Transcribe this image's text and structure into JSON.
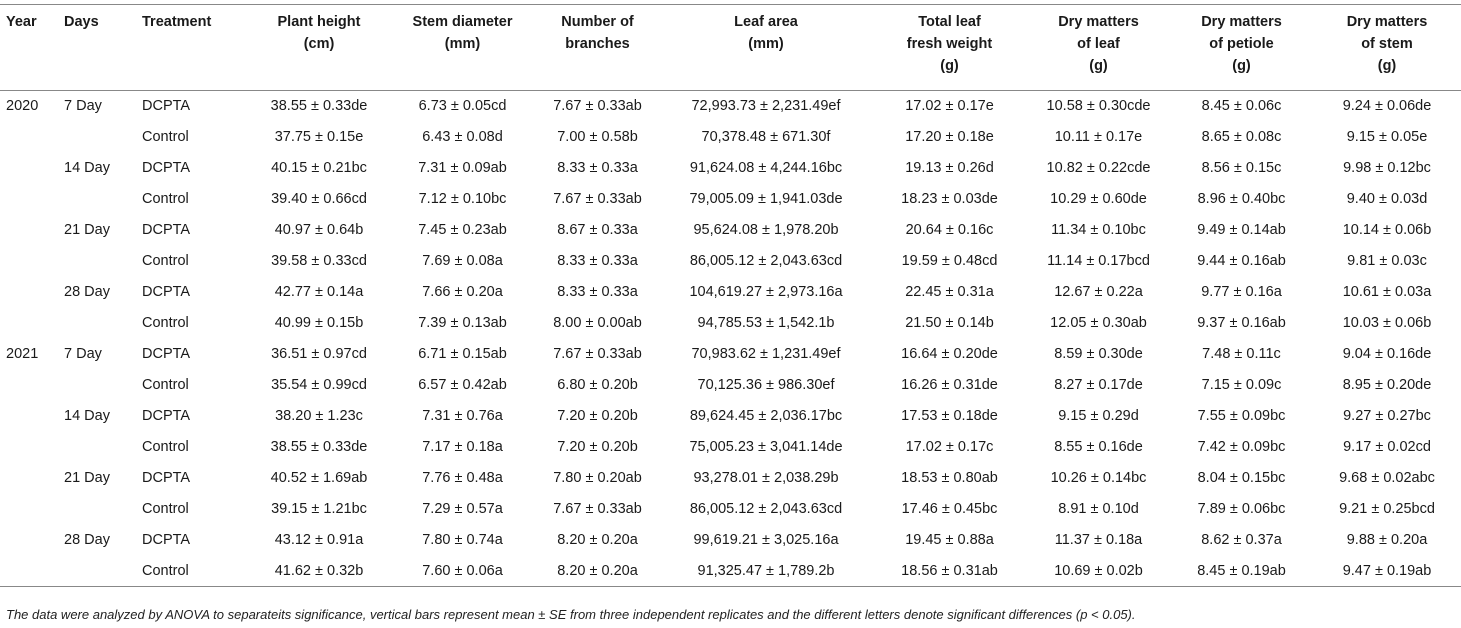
{
  "table": {
    "headers": [
      "Year",
      "Days",
      "Treatment",
      "Plant height\n(cm)",
      "Stem diameter\n(mm)",
      "Number of\nbranches",
      "Leaf area\n(mm)",
      "Total leaf\nfresh weight\n(g)",
      "Dry matters\nof leaf\n(g)",
      "Dry matters\nof petiole\n(g)",
      "Dry matters\nof stem\n(g)"
    ],
    "rows": [
      [
        "2020",
        "7 Day",
        "DCPTA",
        "38.55 ± 0.33de",
        "6.73 ± 0.05cd",
        "7.67 ± 0.33ab",
        "72,993.73 ± 2,231.49ef",
        "17.02 ± 0.17e",
        "10.58 ± 0.30cde",
        "8.45 ± 0.06c",
        "9.24 ± 0.06de"
      ],
      [
        "",
        "",
        "Control",
        "37.75 ± 0.15e",
        "6.43 ± 0.08d",
        "7.00 ± 0.58b",
        "70,378.48 ± 671.30f",
        "17.20 ± 0.18e",
        "10.11 ± 0.17e",
        "8.65 ± 0.08c",
        "9.15 ± 0.05e"
      ],
      [
        "",
        "14 Day",
        "DCPTA",
        "40.15 ± 0.21bc",
        "7.31 ± 0.09ab",
        "8.33 ± 0.33a",
        "91,624.08 ± 4,244.16bc",
        "19.13 ± 0.26d",
        "10.82 ± 0.22cde",
        "8.56 ± 0.15c",
        "9.98 ± 0.12bc"
      ],
      [
        "",
        "",
        "Control",
        "39.40 ± 0.66cd",
        "7.12 ± 0.10bc",
        "7.67 ± 0.33ab",
        "79,005.09 ± 1,941.03de",
        "18.23 ± 0.03de",
        "10.29 ± 0.60de",
        "8.96 ± 0.40bc",
        "9.40 ± 0.03d"
      ],
      [
        "",
        "21 Day",
        "DCPTA",
        "40.97 ± 0.64b",
        "7.45 ± 0.23ab",
        "8.67 ± 0.33a",
        "95,624.08 ± 1,978.20b",
        "20.64 ± 0.16c",
        "11.34 ± 0.10bc",
        "9.49 ± 0.14ab",
        "10.14 ± 0.06b"
      ],
      [
        "",
        "",
        "Control",
        "39.58 ± 0.33cd",
        "7.69 ± 0.08a",
        "8.33 ± 0.33a",
        "86,005.12 ± 2,043.63cd",
        "19.59 ± 0.48cd",
        "11.14 ± 0.17bcd",
        "9.44 ± 0.16ab",
        "9.81 ± 0.03c"
      ],
      [
        "",
        "28 Day",
        "DCPTA",
        "42.77 ± 0.14a",
        "7.66 ± 0.20a",
        "8.33 ± 0.33a",
        "104,619.27 ± 2,973.16a",
        "22.45 ± 0.31a",
        "12.67 ± 0.22a",
        "9.77 ± 0.16a",
        "10.61 ± 0.03a"
      ],
      [
        "",
        "",
        "Control",
        "40.99 ± 0.15b",
        "7.39 ± 0.13ab",
        "8.00 ± 0.00ab",
        "94,785.53 ± 1,542.1b",
        "21.50 ± 0.14b",
        "12.05 ± 0.30ab",
        "9.37 ± 0.16ab",
        "10.03 ± 0.06b"
      ],
      [
        "2021",
        "7 Day",
        "DCPTA",
        "36.51 ± 0.97cd",
        "6.71 ± 0.15ab",
        "7.67 ± 0.33ab",
        "70,983.62 ± 1,231.49ef",
        "16.64 ± 0.20de",
        "8.59 ± 0.30de",
        "7.48 ± 0.11c",
        "9.04 ± 0.16de"
      ],
      [
        "",
        "",
        "Control",
        "35.54 ± 0.99cd",
        "6.57 ± 0.42ab",
        "6.80 ± 0.20b",
        "70,125.36 ± 986.30ef",
        "16.26 ± 0.31de",
        "8.27 ± 0.17de",
        "7.15 ± 0.09c",
        "8.95 ± 0.20de"
      ],
      [
        "",
        "14 Day",
        "DCPTA",
        "38.20 ± 1.23c",
        "7.31 ± 0.76a",
        "7.20 ± 0.20b",
        "89,624.45 ± 2,036.17bc",
        "17.53 ± 0.18de",
        "9.15 ± 0.29d",
        "7.55 ± 0.09bc",
        "9.27 ± 0.27bc"
      ],
      [
        "",
        "",
        "Control",
        "38.55 ± 0.33de",
        "7.17 ± 0.18a",
        "7.20 ± 0.20b",
        "75,005.23 ± 3,041.14de",
        "17.02 ± 0.17c",
        "8.55 ± 0.16de",
        "7.42 ± 0.09bc",
        "9.17 ± 0.02cd"
      ],
      [
        "",
        "21 Day",
        "DCPTA",
        "40.52 ± 1.69ab",
        "7.76 ± 0.48a",
        "7.80 ± 0.20ab",
        "93,278.01 ± 2,038.29b",
        "18.53 ± 0.80ab",
        "10.26 ± 0.14bc",
        "8.04 ± 0.15bc",
        "9.68 ± 0.02abc"
      ],
      [
        "",
        "",
        "Control",
        "39.15 ± 1.21bc",
        "7.29 ± 0.57a",
        "7.67 ± 0.33ab",
        "86,005.12 ± 2,043.63cd",
        "17.46 ± 0.45bc",
        "8.91 ± 0.10d",
        "7.89 ± 0.06bc",
        "9.21 ± 0.25bcd"
      ],
      [
        "",
        "28 Day",
        "DCPTA",
        "43.12 ± 0.91a",
        "7.80 ± 0.74a",
        "8.20 ± 0.20a",
        "99,619.21 ± 3,025.16a",
        "19.45 ± 0.88a",
        "11.37 ± 0.18a",
        "8.62 ± 0.37a",
        "9.88 ± 0.20a"
      ],
      [
        "",
        "",
        "Control",
        "41.62 ± 0.32b",
        "7.60 ± 0.06a",
        "8.20 ± 0.20a",
        "91,325.47 ± 1,789.2b",
        "18.56 ± 0.31ab",
        "10.69 ± 0.02b",
        "8.45 ± 0.19ab",
        "9.47 ± 0.19ab"
      ]
    ]
  },
  "footnote": "The data were analyzed by ANOVA to separateits significance, vertical bars represent mean ± SE from three independent replicates and the different letters denote significant differences (p < 0.05)."
}
